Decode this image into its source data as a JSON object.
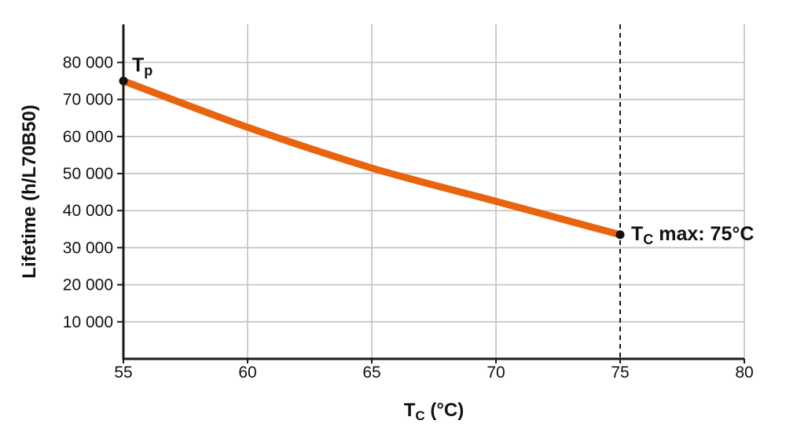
{
  "chart_data": {
    "type": "line",
    "title": "",
    "xlabel_text": "Tc (°C)",
    "xlabel_parts": {
      "main": "T",
      "sub": "C",
      "rest": " (°C)"
    },
    "ylabel": "Lifetime (h/L70B50)",
    "x": [
      55,
      60,
      65,
      70,
      75
    ],
    "series": [
      {
        "name": "lifetime-curve",
        "values": [
          75000,
          62500,
          51500,
          42500,
          33500
        ]
      }
    ],
    "xlim": [
      55,
      80
    ],
    "ylim": [
      0,
      90000
    ],
    "x_ticks": [
      {
        "value": 55,
        "label": "55"
      },
      {
        "value": 60,
        "label": "60"
      },
      {
        "value": 65,
        "label": "65"
      },
      {
        "value": 70,
        "label": "70"
      },
      {
        "value": 75,
        "label": "75"
      },
      {
        "value": 80,
        "label": "80"
      }
    ],
    "y_ticks": [
      {
        "value": 10000,
        "label": "10 000"
      },
      {
        "value": 20000,
        "label": "20 000"
      },
      {
        "value": 30000,
        "label": "30 000"
      },
      {
        "value": 40000,
        "label": "40 000"
      },
      {
        "value": 50000,
        "label": "50 000"
      },
      {
        "value": 60000,
        "label": "60 000"
      },
      {
        "value": 70000,
        "label": "70 000"
      },
      {
        "value": 80000,
        "label": "80 000"
      }
    ],
    "x_gridlines": [
      60,
      65,
      70,
      80
    ],
    "grid": true,
    "legend": false,
    "vline": {
      "x": 75,
      "style": "dashed"
    },
    "annotations": [
      {
        "id": "tp",
        "x": 55,
        "y": 75000,
        "text": "Tp",
        "label_parts": {
          "main": "T",
          "sub": "p",
          "rest": ""
        },
        "marker": true
      },
      {
        "id": "tc-max",
        "x": 75,
        "y": 33500,
        "text": "Tc max: 75°C",
        "label_parts": {
          "main": "T",
          "sub": "C",
          "rest": " max: 75°C"
        },
        "marker": true
      }
    ],
    "colors": {
      "curve": "#E8640E",
      "grid": "#C7C7C7",
      "axis": "#1A1A1A",
      "text": "#111111",
      "marker": "#111111"
    }
  }
}
